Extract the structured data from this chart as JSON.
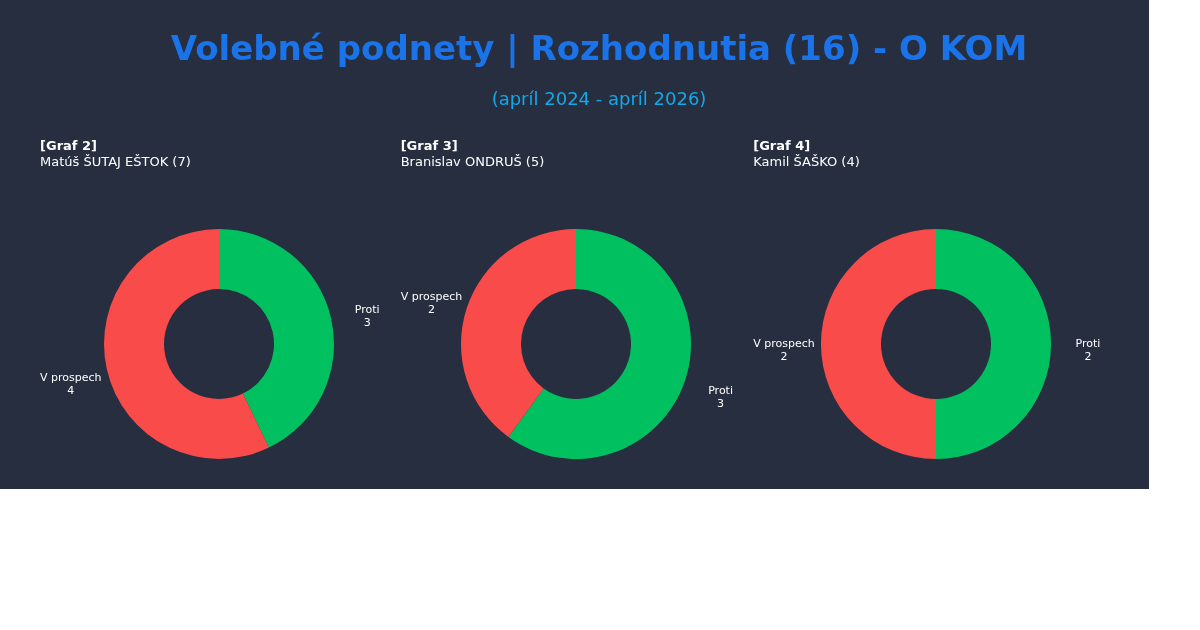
{
  "chart_data": [
    {
      "type": "other",
      "title": "Volebné podnety | Rozhodnutia (16) - O KOM",
      "subtitle": "(apríl 2024 - apríl 2026)"
    },
    {
      "type": "donut",
      "title": "[Graf 2]",
      "subtitle": "Matúš ŠUTAJ EŠTOK (7)",
      "categories": [
        "Proti",
        "V prospech"
      ],
      "values": [
        3,
        4
      ],
      "colors": [
        "#00c060",
        "#fa4b4b"
      ],
      "data_labels": true,
      "legend": false
    },
    {
      "type": "donut",
      "title": "[Graf 3]",
      "subtitle": "Branislav ONDRUŠ (5)",
      "categories": [
        "Proti",
        "V prospech"
      ],
      "values": [
        3,
        2
      ],
      "colors": [
        "#00c060",
        "#fa4b4b"
      ],
      "data_labels": true,
      "legend": false
    },
    {
      "type": "donut",
      "title": "[Graf 4]",
      "subtitle": "Kamil ŠAŠKO (4)",
      "categories": [
        "Proti",
        "V prospech"
      ],
      "values": [
        2,
        2
      ],
      "colors": [
        "#00c060",
        "#fa4b4b"
      ],
      "data_labels": true,
      "legend": false
    }
  ]
}
